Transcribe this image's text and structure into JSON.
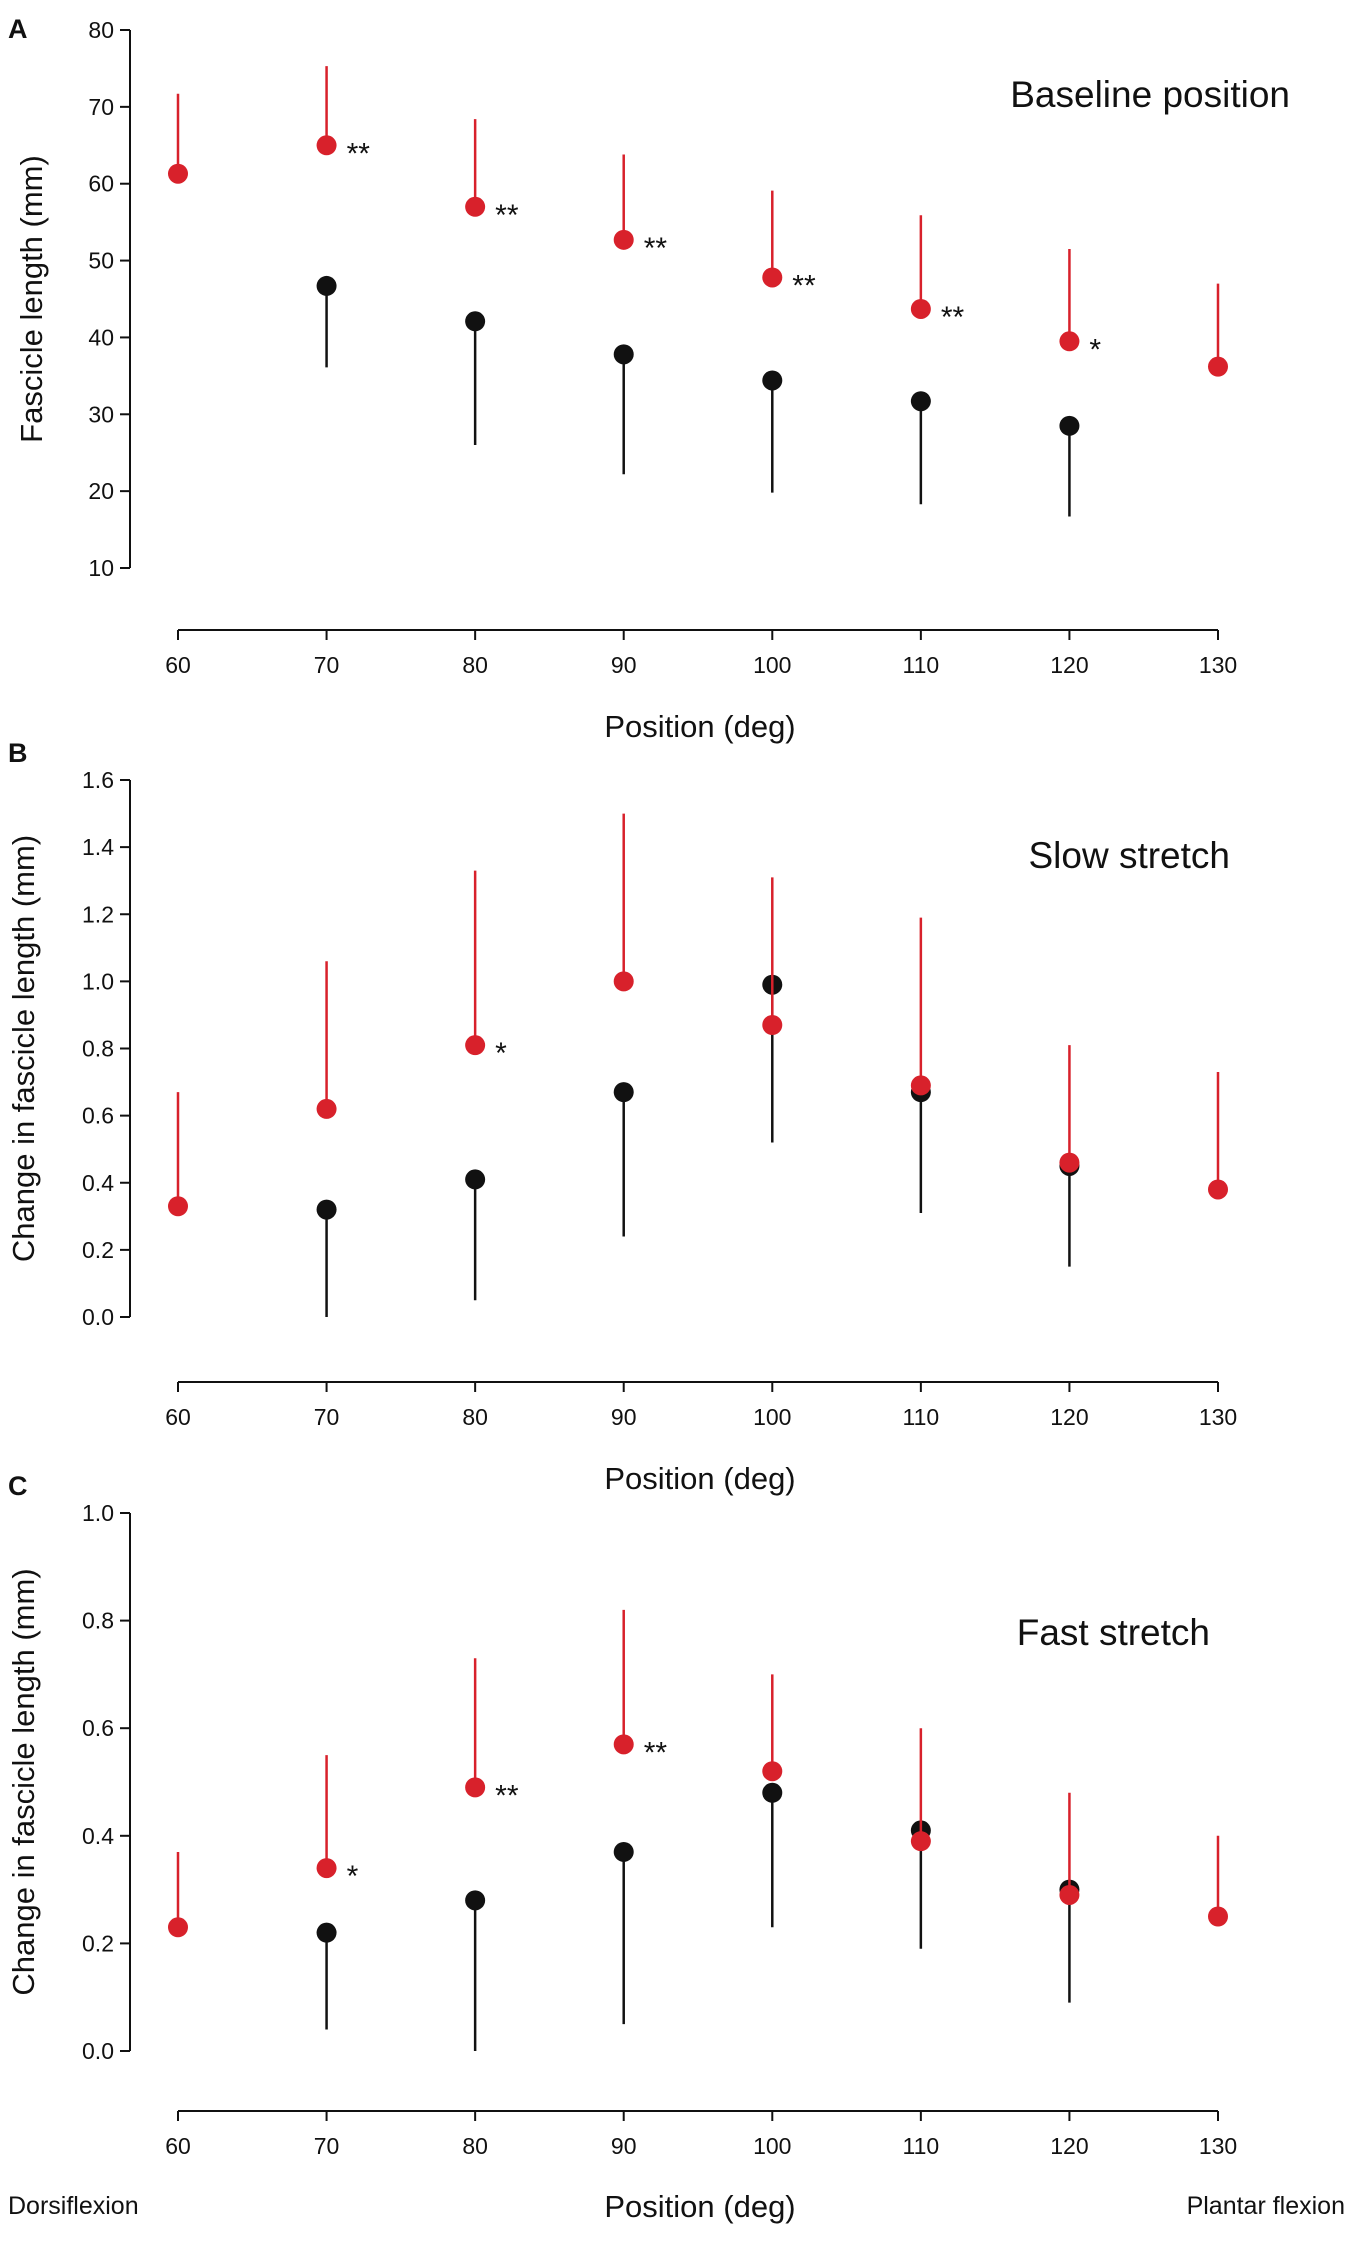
{
  "colors": {
    "group_red": "#d8212b",
    "group_black": "#111111",
    "axis": "#111111"
  },
  "x_end_labels": {
    "left": "Dorsiflexion",
    "right": "Plantar flexion"
  },
  "chart_data": [
    {
      "panel": "A",
      "type": "scatter",
      "title": "Baseline position",
      "xlabel": "Position (deg)",
      "ylabel": "Fascicle length (mm)",
      "xlim": [
        60,
        130
      ],
      "ylim": [
        10,
        80
      ],
      "xticks": [
        60,
        70,
        80,
        90,
        100,
        110,
        120,
        130
      ],
      "yticks": [
        10,
        20,
        30,
        40,
        50,
        60,
        70,
        80
      ],
      "tick_decimals": 0,
      "series": [
        {
          "name": "red",
          "color": "#d8212b",
          "error_direction": "up",
          "x": [
            60,
            70,
            80,
            90,
            100,
            110,
            120,
            130
          ],
          "y": [
            61.3,
            65.0,
            57.0,
            52.7,
            47.8,
            43.7,
            39.5,
            36.2
          ],
          "err": [
            10.4,
            10.3,
            11.4,
            11.1,
            11.3,
            12.2,
            12.0,
            10.8
          ]
        },
        {
          "name": "black",
          "color": "#111111",
          "error_direction": "down",
          "x": [
            70,
            80,
            90,
            100,
            110,
            120
          ],
          "y": [
            46.7,
            42.1,
            37.8,
            34.4,
            31.7,
            28.5
          ],
          "err": [
            10.6,
            16.1,
            15.6,
            14.6,
            13.4,
            11.8
          ]
        }
      ],
      "annotations": [
        {
          "x": 70,
          "y": 65.0,
          "text": "**"
        },
        {
          "x": 80,
          "y": 57.0,
          "text": "**"
        },
        {
          "x": 90,
          "y": 52.7,
          "text": "**"
        },
        {
          "x": 100,
          "y": 47.8,
          "text": "**"
        },
        {
          "x": 110,
          "y": 43.7,
          "text": "**"
        },
        {
          "x": 120,
          "y": 39.5,
          "text": "*"
        }
      ]
    },
    {
      "panel": "B",
      "type": "scatter",
      "title": "Slow stretch",
      "xlabel": "Position (deg)",
      "ylabel": "Change in fascicle length (mm)",
      "xlim": [
        60,
        130
      ],
      "ylim": [
        0,
        1.6
      ],
      "xticks": [
        60,
        70,
        80,
        90,
        100,
        110,
        120,
        130
      ],
      "yticks": [
        0.0,
        0.2,
        0.4,
        0.6,
        0.8,
        1.0,
        1.2,
        1.4,
        1.6
      ],
      "tick_decimals": 1,
      "series": [
        {
          "name": "black",
          "color": "#111111",
          "error_direction": "down",
          "x": [
            70,
            80,
            90,
            100,
            110,
            120
          ],
          "y": [
            0.32,
            0.41,
            0.67,
            0.99,
            0.67,
            0.45
          ],
          "err": [
            0.32,
            0.36,
            0.43,
            0.47,
            0.36,
            0.3
          ]
        },
        {
          "name": "red",
          "color": "#d8212b",
          "error_direction": "up",
          "x": [
            60,
            70,
            80,
            90,
            100,
            110,
            120,
            130
          ],
          "y": [
            0.33,
            0.62,
            0.81,
            1.0,
            0.87,
            0.69,
            0.46,
            0.38
          ],
          "err": [
            0.34,
            0.44,
            0.52,
            0.5,
            0.44,
            0.5,
            0.35,
            0.35
          ]
        }
      ],
      "annotations": [
        {
          "x": 80,
          "y": 0.81,
          "text": "*"
        }
      ]
    },
    {
      "panel": "C",
      "type": "scatter",
      "title": "Fast stretch",
      "xlabel": "Position (deg)",
      "ylabel": "Change in fascicle length (mm)",
      "xlim": [
        60,
        130
      ],
      "ylim": [
        0,
        1.0
      ],
      "xticks": [
        60,
        70,
        80,
        90,
        100,
        110,
        120,
        130
      ],
      "yticks": [
        0.0,
        0.2,
        0.4,
        0.6,
        0.8,
        1.0
      ],
      "tick_decimals": 1,
      "series": [
        {
          "name": "black",
          "color": "#111111",
          "error_direction": "down",
          "x": [
            70,
            80,
            90,
            100,
            110,
            120
          ],
          "y": [
            0.22,
            0.28,
            0.37,
            0.48,
            0.41,
            0.3
          ],
          "err": [
            0.18,
            0.28,
            0.32,
            0.25,
            0.22,
            0.21
          ]
        },
        {
          "name": "red",
          "color": "#d8212b",
          "error_direction": "up",
          "x": [
            60,
            70,
            80,
            90,
            100,
            110,
            120,
            130
          ],
          "y": [
            0.23,
            0.34,
            0.49,
            0.57,
            0.52,
            0.39,
            0.29,
            0.25
          ],
          "err": [
            0.14,
            0.21,
            0.24,
            0.25,
            0.18,
            0.21,
            0.19,
            0.15
          ]
        }
      ],
      "annotations": [
        {
          "x": 70,
          "y": 0.34,
          "text": "*"
        },
        {
          "x": 80,
          "y": 0.49,
          "text": "**"
        },
        {
          "x": 90,
          "y": 0.57,
          "text": "**"
        }
      ]
    }
  ]
}
